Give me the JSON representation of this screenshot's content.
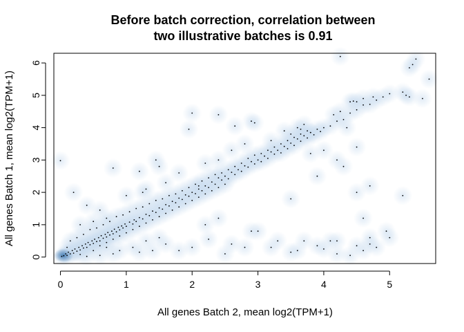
{
  "chart_data": {
    "type": "scatter",
    "title_lines": [
      "Before batch correction, correlation between",
      "two illustrative batches is 0.91"
    ],
    "xlabel": "All genes Batch 2, mean log2(TPM+1)",
    "ylabel": "All genes Batch  1, mean log2(TPM+1)",
    "xlim": [
      -0.1,
      5.7
    ],
    "ylim": [
      -0.2,
      6.3
    ],
    "xticks": [
      0,
      1,
      2,
      3,
      4,
      5
    ],
    "yticks": [
      0,
      1,
      2,
      3,
      4,
      5,
      6
    ],
    "grid": false,
    "legend": "none",
    "point_color": "#000000",
    "density_color": "#2b6aa8",
    "series": [
      {
        "values_xy": [
          [
            0.02,
            0.02
          ],
          [
            0.05,
            0.04
          ],
          [
            0.08,
            0.1
          ],
          [
            0.1,
            0.05
          ],
          [
            0.12,
            0.15
          ],
          [
            0.15,
            0.1
          ],
          [
            0.18,
            0.2
          ],
          [
            0.2,
            0.12
          ],
          [
            0.22,
            0.25
          ],
          [
            0.25,
            0.18
          ],
          [
            0.28,
            0.3
          ],
          [
            0.3,
            0.22
          ],
          [
            0.33,
            0.35
          ],
          [
            0.35,
            0.28
          ],
          [
            0.38,
            0.4
          ],
          [
            0.4,
            0.3
          ],
          [
            0.42,
            0.45
          ],
          [
            0.45,
            0.38
          ],
          [
            0.48,
            0.5
          ],
          [
            0.5,
            0.42
          ],
          [
            0.52,
            0.55
          ],
          [
            0.55,
            0.48
          ],
          [
            0.58,
            0.6
          ],
          [
            0.6,
            0.5
          ],
          [
            0.62,
            0.66
          ],
          [
            0.65,
            0.58
          ],
          [
            0.68,
            0.7
          ],
          [
            0.7,
            0.62
          ],
          [
            0.72,
            0.76
          ],
          [
            0.75,
            0.68
          ],
          [
            0.78,
            0.8
          ],
          [
            0.8,
            0.72
          ],
          [
            0.82,
            0.86
          ],
          [
            0.85,
            0.78
          ],
          [
            0.88,
            0.92
          ],
          [
            0.9,
            0.84
          ],
          [
            0.93,
            0.96
          ],
          [
            0.95,
            0.9
          ],
          [
            0.98,
            1.02
          ],
          [
            1.0,
            0.95
          ],
          [
            1.05,
            1.08
          ],
          [
            1.1,
            1.02
          ],
          [
            1.12,
            1.15
          ],
          [
            1.15,
            1.1
          ],
          [
            1.2,
            1.22
          ],
          [
            1.25,
            1.18
          ],
          [
            1.3,
            1.32
          ],
          [
            1.35,
            1.28
          ],
          [
            1.4,
            1.42
          ],
          [
            1.45,
            1.38
          ],
          [
            1.5,
            1.52
          ],
          [
            1.55,
            1.48
          ],
          [
            1.6,
            1.62
          ],
          [
            1.65,
            1.58
          ],
          [
            1.7,
            1.72
          ],
          [
            1.75,
            1.68
          ],
          [
            1.8,
            1.82
          ],
          [
            1.85,
            1.78
          ],
          [
            1.9,
            1.92
          ],
          [
            1.95,
            1.88
          ],
          [
            2.0,
            2.0
          ],
          [
            2.05,
            1.96
          ],
          [
            2.1,
            2.1
          ],
          [
            2.15,
            2.05
          ],
          [
            2.2,
            2.2
          ],
          [
            2.25,
            2.15
          ],
          [
            2.3,
            2.32
          ],
          [
            2.35,
            2.25
          ],
          [
            2.4,
            2.45
          ],
          [
            2.45,
            2.38
          ],
          [
            2.5,
            2.5
          ],
          [
            2.55,
            2.42
          ],
          [
            2.6,
            2.62
          ],
          [
            2.65,
            2.55
          ],
          [
            2.7,
            2.7
          ],
          [
            2.75,
            2.65
          ],
          [
            2.8,
            2.82
          ],
          [
            2.85,
            2.78
          ],
          [
            2.9,
            2.95
          ],
          [
            2.95,
            2.88
          ],
          [
            3.0,
            3.0
          ],
          [
            3.05,
            2.95
          ],
          [
            3.1,
            3.12
          ],
          [
            3.15,
            3.05
          ],
          [
            3.2,
            3.25
          ],
          [
            3.25,
            3.18
          ],
          [
            3.3,
            3.3
          ],
          [
            3.35,
            3.22
          ],
          [
            3.4,
            3.42
          ],
          [
            3.45,
            3.35
          ],
          [
            3.5,
            3.52
          ],
          [
            3.55,
            3.45
          ],
          [
            3.6,
            3.65
          ],
          [
            3.65,
            3.58
          ],
          [
            3.7,
            3.75
          ],
          [
            3.75,
            3.68
          ],
          [
            3.8,
            3.85
          ],
          [
            3.85,
            3.78
          ],
          [
            3.9,
            3.95
          ],
          [
            3.95,
            3.88
          ],
          [
            4.0,
            4.0
          ],
          [
            4.1,
            4.05
          ],
          [
            4.2,
            4.2
          ],
          [
            4.3,
            4.25
          ],
          [
            4.4,
            4.45
          ],
          [
            4.5,
            4.55
          ],
          [
            4.6,
            4.7
          ],
          [
            4.7,
            4.72
          ],
          [
            4.8,
            4.85
          ],
          [
            4.9,
            4.95
          ],
          [
            5.0,
            5.05
          ],
          [
            5.2,
            5.1
          ],
          [
            5.25,
            5.0
          ],
          [
            5.3,
            4.95
          ],
          [
            5.3,
            5.85
          ],
          [
            5.35,
            5.95
          ],
          [
            5.4,
            6.12
          ],
          [
            5.5,
            4.9
          ],
          [
            5.6,
            5.5
          ],
          [
            4.25,
            6.2
          ],
          [
            4.45,
            4.82
          ],
          [
            4.5,
            4.8
          ],
          [
            4.4,
            4.8
          ],
          [
            4.6,
            4.9
          ],
          [
            4.75,
            4.95
          ],
          [
            4.35,
            4.0
          ],
          [
            4.25,
            4.5
          ],
          [
            4.15,
            4.4
          ],
          [
            3.6,
            4.0
          ],
          [
            3.7,
            4.1
          ],
          [
            3.75,
            3.9
          ],
          [
            3.8,
            3.85
          ],
          [
            3.65,
            3.95
          ],
          [
            3.5,
            3.8
          ],
          [
            2.9,
            4.2
          ],
          [
            2.95,
            4.15
          ],
          [
            2.65,
            4.05
          ],
          [
            2.4,
            4.4
          ],
          [
            2.0,
            4.45
          ],
          [
            1.95,
            3.95
          ],
          [
            1.45,
            3.0
          ],
          [
            1.2,
            2.65
          ],
          [
            0.8,
            2.75
          ],
          [
            0.0,
            2.98
          ],
          [
            0.2,
            2.0
          ],
          [
            0.4,
            1.6
          ],
          [
            0.6,
            1.45
          ],
          [
            0.7,
            1.2
          ],
          [
            0.3,
            1.0
          ],
          [
            0.5,
            1.1
          ],
          [
            1.0,
            1.9
          ],
          [
            1.3,
            2.1
          ],
          [
            1.6,
            2.3
          ],
          [
            1.8,
            2.6
          ],
          [
            2.2,
            2.9
          ],
          [
            2.4,
            3.0
          ],
          [
            2.6,
            3.3
          ],
          [
            2.8,
            3.5
          ],
          [
            3.2,
            3.6
          ],
          [
            3.4,
            3.9
          ],
          [
            1.5,
            2.8
          ],
          [
            1.25,
            2.0
          ],
          [
            2.1,
            2.2
          ],
          [
            3.8,
            3.2
          ],
          [
            4.0,
            3.3
          ],
          [
            4.2,
            3.0
          ],
          [
            4.5,
            3.4
          ],
          [
            4.3,
            2.8
          ],
          [
            3.5,
            1.8
          ],
          [
            3.9,
            2.5
          ],
          [
            4.5,
            2.0
          ],
          [
            4.7,
            2.2
          ],
          [
            4.6,
            1.2
          ],
          [
            5.2,
            1.9
          ],
          [
            3.6,
            0.2
          ],
          [
            3.2,
            0.3
          ],
          [
            2.5,
            0.1
          ],
          [
            2.8,
            0.3
          ],
          [
            3.3,
            0.5
          ],
          [
            3.5,
            0.15
          ],
          [
            3.9,
            0.35
          ],
          [
            4.0,
            0.25
          ],
          [
            4.2,
            0.1
          ],
          [
            4.4,
            0.05
          ],
          [
            4.5,
            0.35
          ],
          [
            4.6,
            0.2
          ],
          [
            4.7,
            0.4
          ],
          [
            4.8,
            0.3
          ],
          [
            4.1,
            0.5
          ],
          [
            2.0,
            0.3
          ],
          [
            1.6,
            0.4
          ],
          [
            1.8,
            0.2
          ],
          [
            2.6,
            0.4
          ],
          [
            2.25,
            0.55
          ],
          [
            2.9,
            0.8
          ],
          [
            3.0,
            0.8
          ],
          [
            3.7,
            0.5
          ],
          [
            4.2,
            0.5
          ],
          [
            4.7,
            0.6
          ],
          [
            5.0,
            0.6
          ],
          [
            4.95,
            0.8
          ],
          [
            2.4,
            1.2
          ],
          [
            2.2,
            1.0
          ],
          [
            1.3,
            0.5
          ],
          [
            1.5,
            0.6
          ],
          [
            1.1,
            0.3
          ],
          [
            0.9,
            0.2
          ],
          [
            0.8,
            0.1
          ],
          [
            1.2,
            0.15
          ],
          [
            1.4,
            0.2
          ],
          [
            0.6,
            0.05
          ],
          [
            0.4,
            0.02
          ],
          [
            0.7,
            0.3
          ],
          [
            0.5,
            0.2
          ],
          [
            0.3,
            0.08
          ],
          [
            0.25,
            0.6
          ],
          [
            0.15,
            0.5
          ],
          [
            0.1,
            0.3
          ],
          [
            0.35,
            0.7
          ],
          [
            0.45,
            0.85
          ],
          [
            0.55,
            0.9
          ],
          [
            0.65,
            1.0
          ],
          [
            0.75,
            1.1
          ],
          [
            0.85,
            1.25
          ],
          [
            0.95,
            1.3
          ],
          [
            1.05,
            1.4
          ],
          [
            1.15,
            1.5
          ],
          [
            1.25,
            1.55
          ],
          [
            1.35,
            1.65
          ],
          [
            1.45,
            1.75
          ],
          [
            1.55,
            1.8
          ],
          [
            1.65,
            1.9
          ],
          [
            1.75,
            1.95
          ],
          [
            1.85,
            2.05
          ],
          [
            1.95,
            2.15
          ],
          [
            2.05,
            2.25
          ],
          [
            2.15,
            2.35
          ],
          [
            2.25,
            2.45
          ],
          [
            2.35,
            2.55
          ],
          [
            2.45,
            2.6
          ],
          [
            2.55,
            2.7
          ],
          [
            2.65,
            2.8
          ],
          [
            2.75,
            2.9
          ],
          [
            2.85,
            3.05
          ],
          [
            2.95,
            3.15
          ],
          [
            3.05,
            3.2
          ],
          [
            3.15,
            3.3
          ],
          [
            3.25,
            3.4
          ],
          [
            3.35,
            3.5
          ],
          [
            3.45,
            3.6
          ],
          [
            3.55,
            3.7
          ],
          [
            3.65,
            3.8
          ],
          [
            0.6,
            0.35
          ],
          [
            0.7,
            0.45
          ],
          [
            0.8,
            0.55
          ],
          [
            0.9,
            0.65
          ],
          [
            1.0,
            0.75
          ],
          [
            1.1,
            0.85
          ],
          [
            1.2,
            0.95
          ],
          [
            1.3,
            1.05
          ],
          [
            1.4,
            1.15
          ],
          [
            1.5,
            1.25
          ],
          [
            1.6,
            1.35
          ],
          [
            1.7,
            1.45
          ],
          [
            1.8,
            1.55
          ],
          [
            1.9,
            1.65
          ],
          [
            2.0,
            1.75
          ],
          [
            2.1,
            1.85
          ],
          [
            2.2,
            1.95
          ],
          [
            2.3,
            2.05
          ],
          [
            2.4,
            2.15
          ],
          [
            2.5,
            2.25
          ]
        ]
      }
    ]
  }
}
